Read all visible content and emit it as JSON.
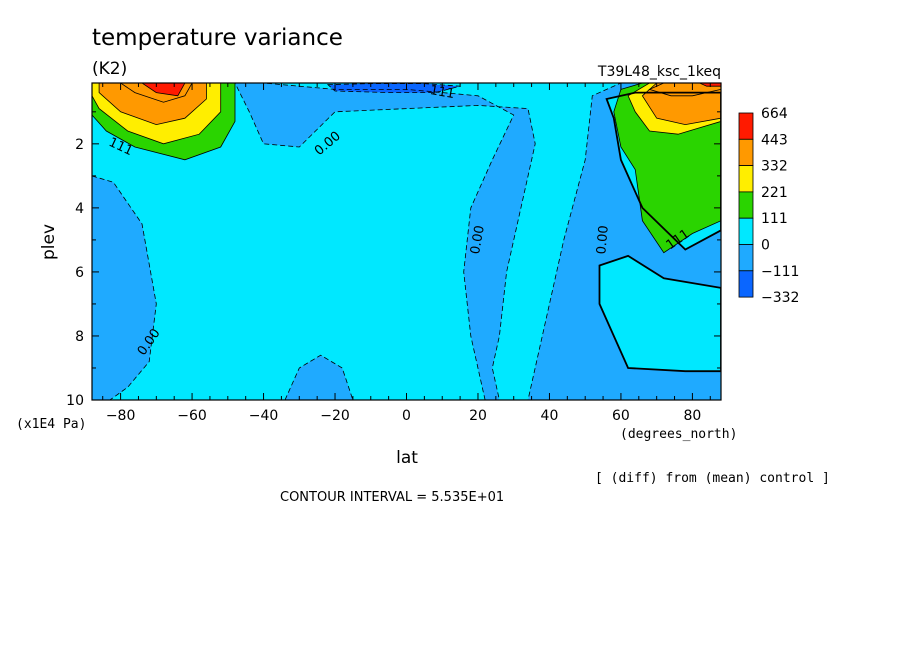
{
  "chart_data": {
    "type": "heatmap",
    "title": "temperature variance",
    "units": "(K2)",
    "run_label": "T39L48_ksc_1keq",
    "xlabel": "lat",
    "x_units": "(degrees_north)",
    "ylabel": "plev",
    "y_units": "(x1E4 Pa)",
    "xlim": [
      -88,
      88
    ],
    "ylim": [
      10,
      0.1
    ],
    "x_ticks": [
      "−80",
      "−60",
      "−40",
      "−20",
      "0",
      "20",
      "40",
      "60",
      "80"
    ],
    "x_tick_values": [
      -80,
      -60,
      -40,
      -20,
      0,
      20,
      40,
      60,
      80
    ],
    "y_ticks": [
      "2",
      "4",
      "6",
      "8",
      "10"
    ],
    "y_tick_values": [
      2,
      4,
      6,
      8,
      10
    ],
    "legend": {
      "labels": [
        "664",
        "443",
        "332",
        "221",
        "111",
        "0",
        "−111",
        "−332"
      ],
      "colors": [
        "#ff1a00",
        "#ff9900",
        "#ffee00",
        "#2ad400",
        "#00e8ff",
        "#1faaff",
        "#0a66ff",
        "#0a66ff"
      ],
      "placement": "right"
    },
    "contour_labels": [
      {
        "text": "111",
        "lat": -80,
        "plev": 2.1,
        "angle": 25
      },
      {
        "text": "0.00",
        "lat": -72,
        "plev": 8.2,
        "angle": -55
      },
      {
        "text": "0.00",
        "lat": -22,
        "plev": 2.0,
        "angle": -40
      },
      {
        "text": "111",
        "lat": 10,
        "plev": 0.4,
        "angle": 10
      },
      {
        "text": "0.00",
        "lat": 20,
        "plev": 5.0,
        "angle": -80
      },
      {
        "text": "0.00",
        "lat": 55,
        "plev": 5.0,
        "angle": -85
      },
      {
        "text": "111",
        "lat": 76,
        "plev": 5.0,
        "angle": -35
      }
    ],
    "regions": [
      {
        "level": "0",
        "color": "#00e8ff",
        "points": [
          [
            -88,
            0.1
          ],
          [
            88,
            0.1
          ],
          [
            88,
            10
          ],
          [
            -88,
            10
          ]
        ]
      },
      {
        "level": "−111",
        "color": "#1faaff",
        "points": [
          [
            -88,
            3
          ],
          [
            -82,
            3.2
          ],
          [
            -74,
            4.5
          ],
          [
            -70,
            7
          ],
          [
            -72,
            8.8
          ],
          [
            -78,
            9.6
          ],
          [
            -83,
            10
          ],
          [
            -88,
            10
          ]
        ]
      },
      {
        "level": "−111",
        "color": "#1faaff",
        "points": [
          [
            -48,
            0.1
          ],
          [
            -40,
            0.1
          ],
          [
            -20,
            0.3
          ],
          [
            0,
            0.3
          ],
          [
            20,
            0.5
          ],
          [
            30,
            1.1
          ],
          [
            24,
            2.5
          ],
          [
            18,
            4
          ],
          [
            16,
            6
          ],
          [
            18,
            8
          ],
          [
            22,
            10
          ],
          [
            88,
            10
          ],
          [
            88,
            0.1
          ],
          [
            60,
            0.1
          ],
          [
            52,
            0.5
          ],
          [
            50,
            2.5
          ],
          [
            44,
            5
          ],
          [
            38,
            8
          ],
          [
            34,
            10
          ],
          [
            26,
            10
          ],
          [
            24,
            9
          ],
          [
            26,
            8
          ],
          [
            28,
            6
          ],
          [
            32,
            4
          ],
          [
            36,
            2
          ],
          [
            34,
            0.9
          ],
          [
            20,
            0.8
          ],
          [
            0,
            0.9
          ],
          [
            -20,
            1.0
          ],
          [
            -30,
            2.1
          ],
          [
            -40,
            2.0
          ],
          [
            -44,
            1.0
          ]
        ]
      },
      {
        "level": "0",
        "color": "#00e8ff",
        "points": [
          [
            56,
            0.6
          ],
          [
            64,
            0.4
          ],
          [
            88,
            0.4
          ],
          [
            88,
            4.7
          ],
          [
            78,
            5.3
          ],
          [
            66,
            4.0
          ],
          [
            60,
            2.5
          ],
          [
            58,
            1.2
          ]
        ]
      },
      {
        "level": "0",
        "color": "#00e8ff",
        "points": [
          [
            54,
            5.8
          ],
          [
            62,
            5.5
          ],
          [
            72,
            6.2
          ],
          [
            88,
            6.5
          ],
          [
            88,
            9.1
          ],
          [
            78,
            9.1
          ],
          [
            62,
            9.0
          ],
          [
            54,
            7.0
          ]
        ]
      },
      {
        "level": "−111",
        "color": "#1faaff",
        "points": [
          [
            -34,
            10
          ],
          [
            -30,
            9
          ],
          [
            -24,
            8.6
          ],
          [
            -18,
            9
          ],
          [
            -15,
            10
          ]
        ]
      },
      {
        "level": "−332",
        "color": "#0a66ff",
        "points": [
          [
            -22,
            0.15
          ],
          [
            -10,
            0.12
          ],
          [
            5,
            0.12
          ],
          [
            15,
            0.2
          ],
          [
            8,
            0.4
          ],
          [
            -5,
            0.4
          ],
          [
            -20,
            0.35
          ]
        ]
      },
      {
        "level": "111",
        "color": "#2ad400",
        "points": [
          [
            -88,
            0.1
          ],
          [
            -48,
            0.1
          ],
          [
            -48,
            1.3
          ],
          [
            -52,
            2.1
          ],
          [
            -62,
            2.5
          ],
          [
            -76,
            2.1
          ],
          [
            -84,
            1.6
          ],
          [
            -88,
            1.1
          ]
        ]
      },
      {
        "level": "221",
        "color": "#ffee00",
        "points": [
          [
            -88,
            0.1
          ],
          [
            -52,
            0.1
          ],
          [
            -52,
            1.0
          ],
          [
            -58,
            1.7
          ],
          [
            -68,
            2.0
          ],
          [
            -78,
            1.6
          ],
          [
            -86,
            0.9
          ],
          [
            -88,
            0.5
          ]
        ]
      },
      {
        "level": "332",
        "color": "#ff9900",
        "points": [
          [
            -86,
            0.1
          ],
          [
            -56,
            0.1
          ],
          [
            -56,
            0.6
          ],
          [
            -62,
            1.2
          ],
          [
            -70,
            1.4
          ],
          [
            -80,
            1.0
          ],
          [
            -86,
            0.4
          ]
        ]
      },
      {
        "level": "443",
        "color": "#ff9900",
        "points": [
          [
            -80,
            0.1
          ],
          [
            -60,
            0.1
          ],
          [
            -62,
            0.5
          ],
          [
            -68,
            0.7
          ],
          [
            -76,
            0.4
          ]
        ]
      },
      {
        "level": "664",
        "color": "#ff1a00",
        "points": [
          [
            -74,
            0.1
          ],
          [
            -62,
            0.1
          ],
          [
            -64,
            0.5
          ],
          [
            -70,
            0.4
          ]
        ]
      },
      {
        "level": "111",
        "color": "#2ad400",
        "points": [
          [
            60,
            0.3
          ],
          [
            66,
            0.1
          ],
          [
            88,
            0.1
          ],
          [
            88,
            4.4
          ],
          [
            80,
            4.8
          ],
          [
            72,
            5.4
          ],
          [
            66,
            4.4
          ],
          [
            64,
            2.8
          ],
          [
            60,
            2.1
          ],
          [
            58,
            1.0
          ]
        ]
      },
      {
        "level": "221",
        "color": "#ffee00",
        "points": [
          [
            62,
            0.5
          ],
          [
            68,
            0.1
          ],
          [
            88,
            0.1
          ],
          [
            88,
            1.3
          ],
          [
            76,
            1.7
          ],
          [
            68,
            1.6
          ],
          [
            64,
            1.0
          ]
        ]
      },
      {
        "level": "332",
        "color": "#ff9900",
        "points": [
          [
            66,
            0.5
          ],
          [
            70,
            0.1
          ],
          [
            88,
            0.1
          ],
          [
            88,
            1.2
          ],
          [
            78,
            1.4
          ],
          [
            70,
            1.2
          ]
        ]
      },
      {
        "level": "443",
        "color": "#ff9900",
        "points": [
          [
            68,
            0.3
          ],
          [
            72,
            0.1
          ],
          [
            88,
            0.1
          ],
          [
            88,
            0.3
          ],
          [
            80,
            0.5
          ],
          [
            74,
            0.5
          ]
        ]
      },
      {
        "level": "664",
        "color": "#ff1a00",
        "points": [
          [
            82,
            0.1
          ],
          [
            88,
            0.1
          ],
          [
            88,
            0.2
          ],
          [
            84,
            0.2
          ]
        ]
      }
    ]
  },
  "footer": {
    "contour_interval": "CONTOUR INTERVAL = 5.535E+01",
    "diff_note": "[ (diff) from (mean) control ]"
  }
}
